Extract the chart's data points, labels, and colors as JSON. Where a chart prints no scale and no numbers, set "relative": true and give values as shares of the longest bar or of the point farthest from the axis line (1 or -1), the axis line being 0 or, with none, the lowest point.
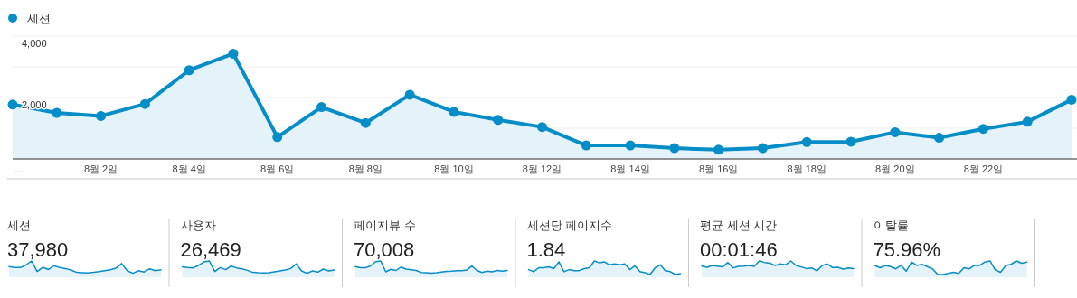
{
  "chart_data": [
    {
      "type": "area",
      "categories": [
        "…",
        null,
        "8월 2일",
        null,
        "8월 4일",
        null,
        "8월 6일",
        null,
        "8월 8일",
        null,
        "8월 10일",
        null,
        "8월 12일",
        null,
        "8월 14일",
        null,
        "8월 16일",
        null,
        "8월 18일",
        null,
        "8월 20일",
        null,
        "8월 22일",
        null,
        null
      ],
      "series": [
        {
          "name": "세션",
          "color": "#058dc7",
          "values": [
            1770,
            1500,
            1400,
            1790,
            2890,
            3430,
            710,
            1690,
            1170,
            2090,
            1530,
            1270,
            1040,
            440,
            440,
            350,
            300,
            350,
            550,
            560,
            870,
            690,
            980,
            1210,
            1930
          ]
        }
      ],
      "ylim": [
        0,
        4000
      ],
      "yticks": [
        {
          "value": 0,
          "label": null
        },
        {
          "value": 1000,
          "label": null
        },
        {
          "value": 2000,
          "label": "2,000"
        },
        {
          "value": 3000,
          "label": null
        },
        {
          "value": 4000,
          "label": "4,000"
        }
      ],
      "grid": "y",
      "legend": "top left",
      "marker": "circle"
    },
    {
      "type": "area",
      "relative": true,
      "title": "세션",
      "subtitle": "37,980",
      "color": "#058dc7",
      "categories": [
        null,
        null,
        null,
        null,
        null,
        null,
        null,
        null,
        null,
        null,
        null,
        null,
        null,
        null,
        null,
        null,
        null,
        null,
        null,
        null,
        null,
        null,
        null,
        null,
        null,
        null,
        null,
        null
      ],
      "values": [
        0.58,
        0.51,
        0.51,
        0.7,
        1,
        0.23,
        0.53,
        0.37,
        0.65,
        0.51,
        0.44,
        0.33,
        0.16,
        0.14,
        0.12,
        0.16,
        0.21,
        0.28,
        0.35,
        0.47,
        0.81,
        0.28,
        0.09,
        0.28,
        0.19,
        0.42,
        0.28,
        0.35
      ]
    },
    {
      "type": "area",
      "relative": true,
      "title": "사용자",
      "subtitle": "26,469",
      "color": "#058dc7",
      "categories": [
        null,
        null,
        null,
        null,
        null,
        null,
        null,
        null,
        null,
        null,
        null,
        null,
        null,
        null,
        null,
        null,
        null,
        null,
        null,
        null,
        null,
        null,
        null,
        null,
        null,
        null,
        null,
        null,
        null
      ],
      "values": [
        0.56,
        0.51,
        0.49,
        0.67,
        0.93,
        1,
        0.22,
        0.51,
        0.36,
        0.62,
        0.49,
        0.42,
        0.31,
        0.16,
        0.13,
        0.11,
        0.13,
        0.2,
        0.27,
        0.33,
        0.44,
        0.78,
        0.27,
        0.09,
        0.27,
        0.18,
        0.4,
        0.27,
        0.33
      ]
    },
    {
      "type": "area",
      "relative": true,
      "title": "페이지뷰 수",
      "subtitle": "70,008",
      "color": "#058dc7",
      "categories": [
        null,
        null,
        null,
        null,
        null,
        null,
        null,
        null,
        null,
        null,
        null,
        null,
        null,
        null,
        null,
        null,
        null,
        null,
        null,
        null,
        null,
        null,
        null,
        null,
        null,
        null,
        null,
        null,
        null,
        null,
        null
      ],
      "values": [
        0.58,
        0.5,
        0.5,
        0.63,
        0.95,
        1,
        0.2,
        0.38,
        0.3,
        0.55,
        0.4,
        0.35,
        0.3,
        0.15,
        0.13,
        0.1,
        0.13,
        0.18,
        0.23,
        0.25,
        0.28,
        0.28,
        0.33,
        0.63,
        0.3,
        0.15,
        0.25,
        0.2,
        0.3,
        0.25,
        0.3
      ]
    },
    {
      "type": "area",
      "relative": true,
      "title": "세션당 페이지수",
      "subtitle": "1.84",
      "color": "#058dc7",
      "categories": [
        null,
        null,
        null,
        null,
        null,
        null,
        null,
        null,
        null,
        null,
        null,
        null,
        null,
        null,
        null,
        null,
        null,
        null,
        null,
        null,
        null,
        null,
        null,
        null,
        null,
        null,
        null,
        null,
        null,
        null,
        null
      ],
      "values": [
        0.36,
        0.21,
        0.5,
        0.5,
        0.57,
        0.43,
        0.93,
        0.21,
        0.36,
        0.29,
        0.29,
        0.43,
        0.5,
        1,
        0.86,
        0.93,
        0.71,
        0.79,
        0.71,
        0.79,
        0.36,
        0.64,
        0.21,
        0.14,
        0,
        0.5,
        0.71,
        0.29,
        0.21,
        0,
        0.07
      ]
    },
    {
      "type": "area",
      "relative": true,
      "title": "평균 세션 시간",
      "subtitle": "00:01:46",
      "color": "#058dc7",
      "categories": [
        null,
        null,
        null,
        null,
        null,
        null,
        null,
        null,
        null,
        null,
        null,
        null,
        null,
        null,
        null,
        null,
        null,
        null,
        null,
        null,
        null,
        null,
        null,
        null,
        null,
        null,
        null,
        null,
        null,
        null
      ],
      "values": [
        0.62,
        0.53,
        0.67,
        0.62,
        0.56,
        0.89,
        0.49,
        0.6,
        0.62,
        0.67,
        0.6,
        1,
        0.89,
        0.84,
        0.67,
        0.78,
        0.71,
        1,
        0.67,
        0.56,
        0.44,
        0.49,
        0.27,
        0.67,
        0.78,
        0.51,
        0.53,
        0.4,
        0.49,
        0.44
      ]
    },
    {
      "type": "area",
      "relative": true,
      "title": "이탈률",
      "subtitle": "75.96%",
      "color": "#058dc7",
      "categories": [
        null,
        null,
        null,
        null,
        null,
        null,
        null,
        null,
        null,
        null,
        null,
        null,
        null,
        null,
        null,
        null,
        null,
        null,
        null,
        null,
        null,
        null,
        null,
        null,
        null,
        null,
        null,
        null,
        null,
        null
      ],
      "values": [
        0.67,
        0.5,
        0.67,
        0.58,
        0.42,
        0.67,
        0.25,
        0.92,
        0.67,
        0.75,
        0.58,
        0.42,
        0,
        0,
        0.08,
        0.17,
        0.08,
        0.5,
        0.42,
        0.67,
        0.67,
        0.92,
        1,
        0.33,
        0.17,
        0.67,
        0.75,
        1,
        0.83,
        0.92
      ]
    }
  ]
}
